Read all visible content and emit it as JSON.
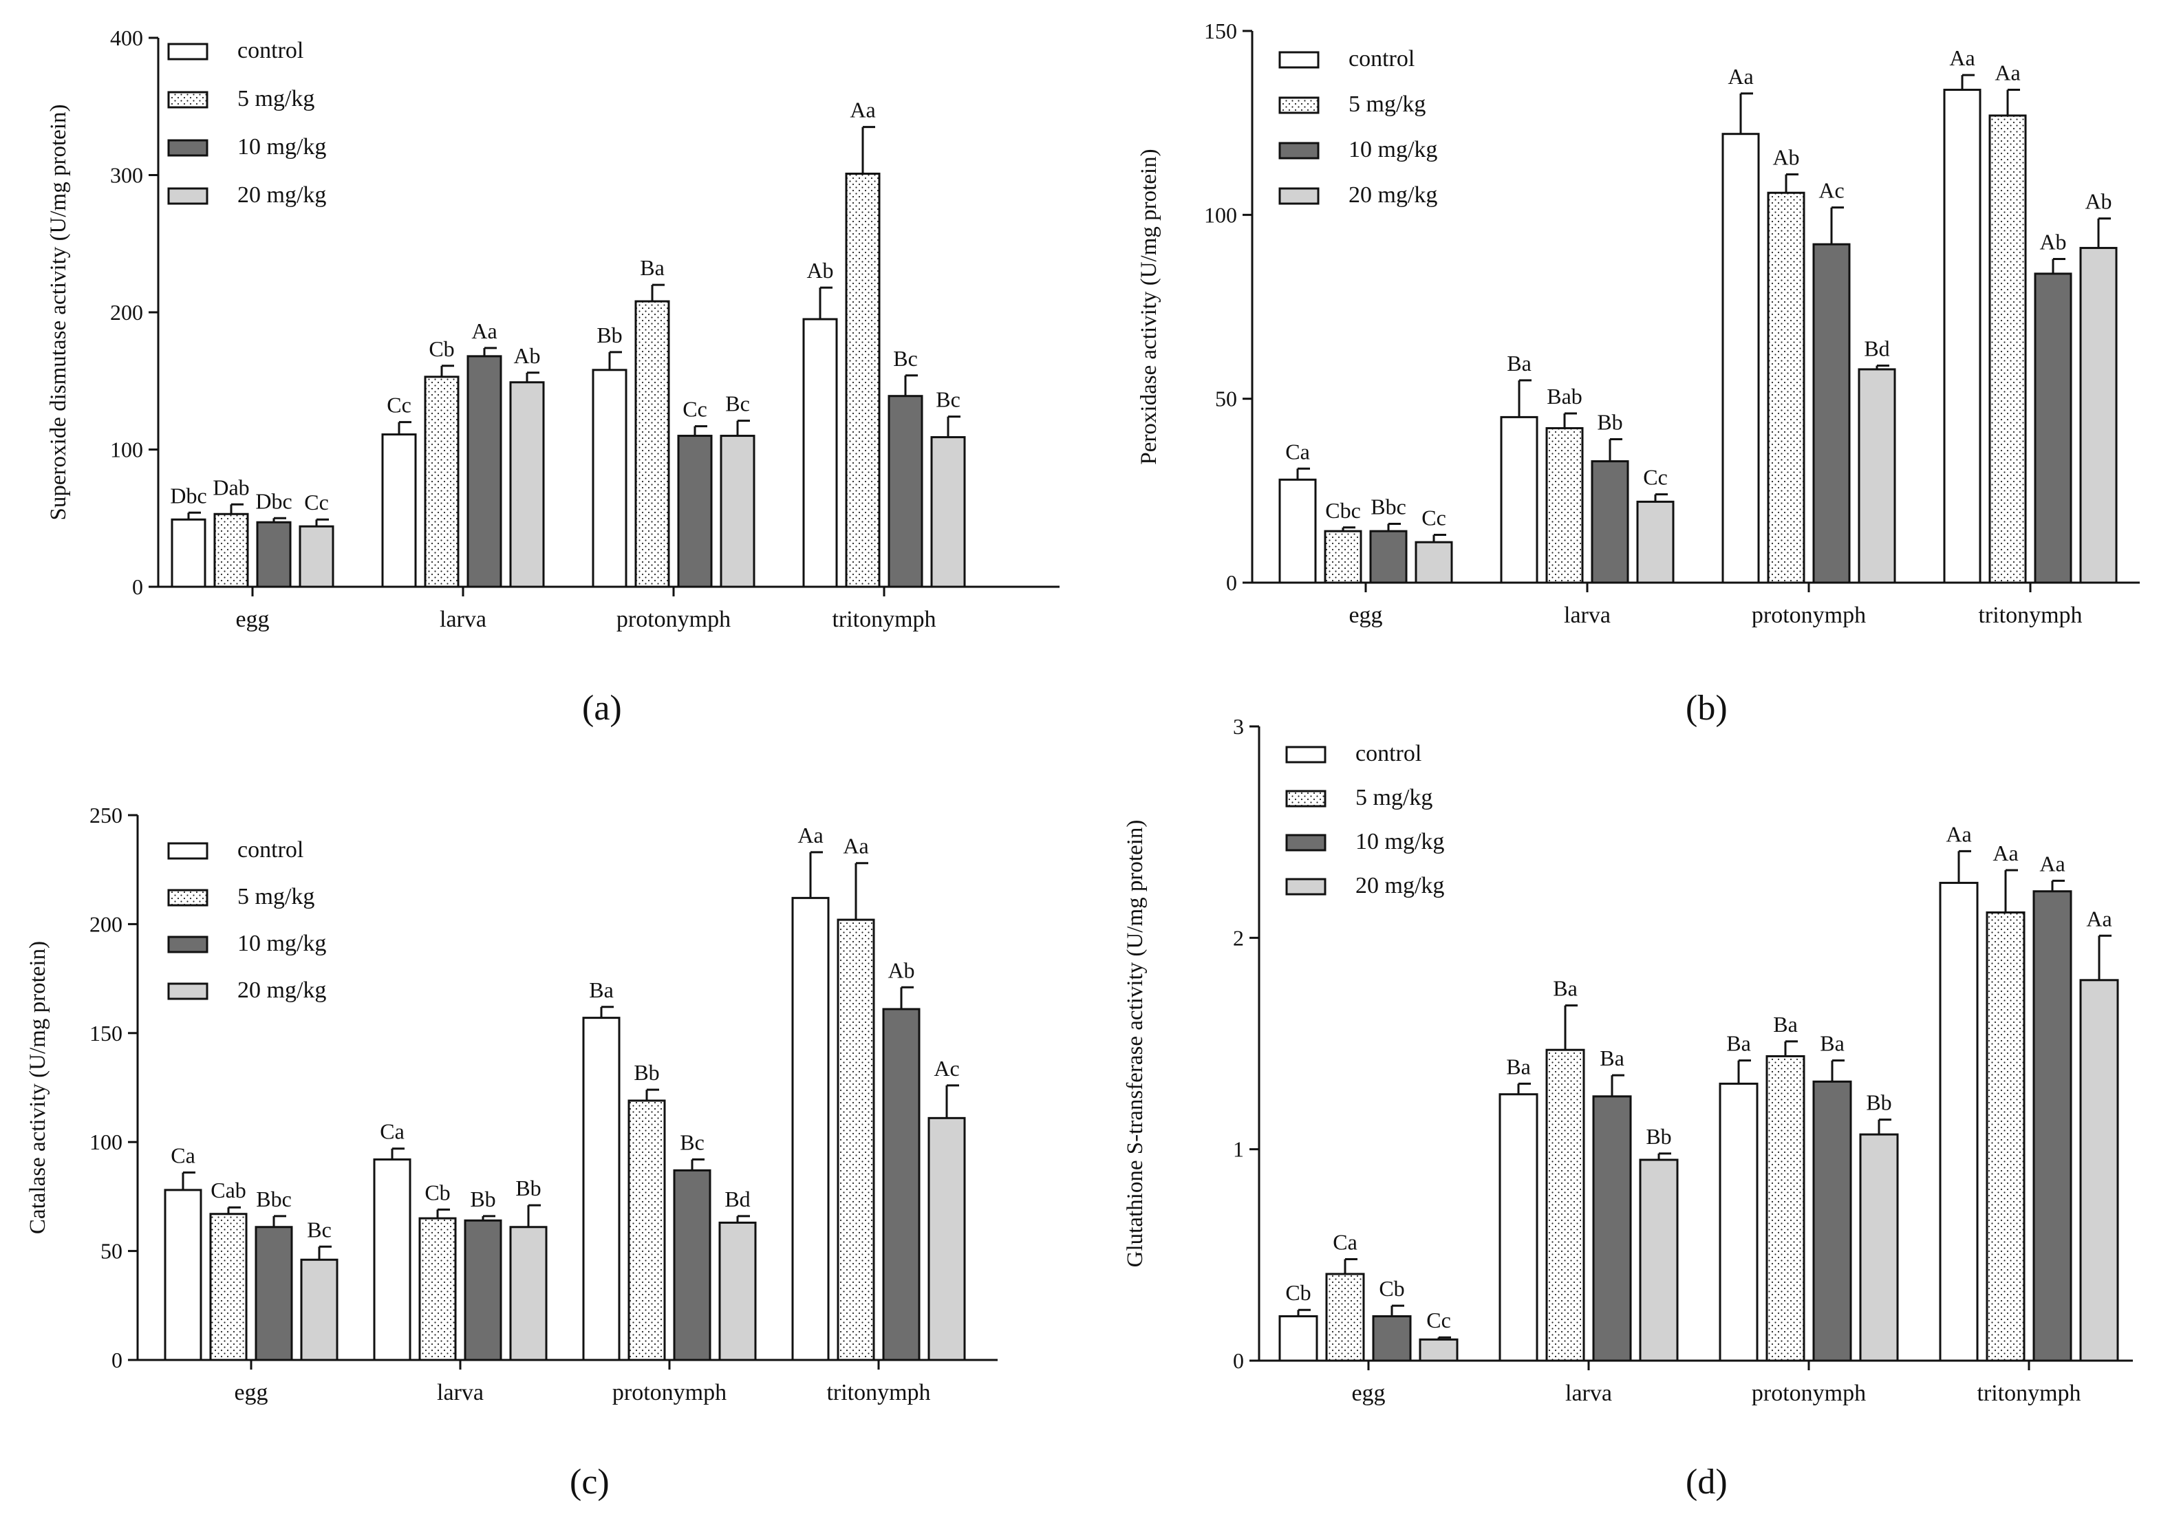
{
  "panels": [
    {
      "id": "a",
      "label": "(a)"
    },
    {
      "id": "b",
      "label": "(b)"
    },
    {
      "id": "c",
      "label": "(c)"
    },
    {
      "id": "d",
      "label": "(d)"
    }
  ],
  "legend": [
    "control",
    "5 mg/kg",
    "10 mg/kg",
    "20 mg/kg"
  ],
  "series_colors": {
    "control": "#ffffff",
    "5 mg/kg": "#ffffff",
    "10 mg/kg": "#6e6e6e",
    "20 mg/kg": "#d2d2d2"
  },
  "chart_data": [
    {
      "type": "bar",
      "ylabel": "Superoxide dismutase activity (U/mg protein)",
      "xlabel": "",
      "categories": [
        "egg",
        "larva",
        "protonymph",
        "tritonymph"
      ],
      "ylim": [
        0,
        400
      ],
      "yticks": [
        0,
        100,
        200,
        300,
        400
      ],
      "legend_position": "top-left",
      "grid": false,
      "series": [
        {
          "name": "control",
          "values": [
            49,
            111,
            158,
            195
          ],
          "errors": [
            5,
            9,
            13,
            23
          ],
          "labels": [
            "Dbc",
            "Cc",
            "Bb",
            "Ab"
          ]
        },
        {
          "name": "5 mg/kg",
          "values": [
            53,
            153,
            208,
            301
          ],
          "errors": [
            7,
            8,
            12,
            34
          ],
          "labels": [
            "Dab",
            "Cb",
            "Ba",
            "Aa"
          ]
        },
        {
          "name": "10 mg/kg",
          "values": [
            47,
            168,
            110,
            139
          ],
          "errors": [
            3,
            6,
            7,
            15
          ],
          "labels": [
            "Dbc",
            "Aa",
            "Cc",
            "Bc"
          ]
        },
        {
          "name": "20 mg/kg",
          "values": [
            44,
            149,
            110,
            109
          ],
          "errors": [
            5,
            7,
            11,
            15
          ],
          "labels": [
            "Cc",
            "Ab",
            "Bc",
            "Bc"
          ]
        }
      ]
    },
    {
      "type": "bar",
      "ylabel": "Peroxidase activity (U/mg protein)",
      "xlabel": "",
      "categories": [
        "egg",
        "larva",
        "protonymph",
        "tritonymph"
      ],
      "ylim": [
        0,
        150
      ],
      "yticks": [
        0,
        50,
        100,
        150
      ],
      "legend_position": "top-left",
      "grid": false,
      "series": [
        {
          "name": "control",
          "values": [
            28,
            45,
            122,
            134
          ],
          "errors": [
            3,
            10,
            11,
            4
          ],
          "labels": [
            "Ca",
            "Ba",
            "Aa",
            "Aa"
          ]
        },
        {
          "name": "5 mg/kg",
          "values": [
            14,
            42,
            106,
            127
          ],
          "errors": [
            1,
            4,
            5,
            7
          ],
          "labels": [
            "Cbc",
            "Bab",
            "Ab",
            "Aa"
          ]
        },
        {
          "name": "10 mg/kg",
          "values": [
            14,
            33,
            92,
            84
          ],
          "errors": [
            2,
            6,
            10,
            4
          ],
          "labels": [
            "Bbc",
            "Bb",
            "Ac",
            "Ab"
          ]
        },
        {
          "name": "20 mg/kg",
          "values": [
            11,
            22,
            58,
            91
          ],
          "errors": [
            2,
            2,
            1,
            8
          ],
          "labels": [
            "Cc",
            "Cc",
            "Bd",
            "Ab"
          ]
        }
      ]
    },
    {
      "type": "bar",
      "ylabel": "Catalase activity (U/mg protein)",
      "xlabel": "",
      "categories": [
        "egg",
        "larva",
        "protonymph",
        "tritonymph"
      ],
      "ylim": [
        0,
        250
      ],
      "yticks": [
        0,
        50,
        100,
        150,
        200,
        250
      ],
      "legend_position": "top-left",
      "grid": false,
      "series": [
        {
          "name": "control",
          "values": [
            78,
            92,
            157,
            212
          ],
          "errors": [
            8,
            5,
            5,
            21
          ],
          "labels": [
            "Ca",
            "Ca",
            "Ba",
            "Aa"
          ]
        },
        {
          "name": "5 mg/kg",
          "values": [
            67,
            65,
            119,
            202
          ],
          "errors": [
            3,
            4,
            5,
            26
          ],
          "labels": [
            "Cab",
            "Cb",
            "Bb",
            "Aa"
          ]
        },
        {
          "name": "10 mg/kg",
          "values": [
            61,
            64,
            87,
            161
          ],
          "errors": [
            5,
            2,
            5,
            10
          ],
          "labels": [
            "Bbc",
            "Bb",
            "Bc",
            "Ab"
          ]
        },
        {
          "name": "20 mg/kg",
          "values": [
            46,
            61,
            63,
            111
          ],
          "errors": [
            6,
            10,
            3,
            15
          ],
          "labels": [
            "Bc",
            "Bb",
            "Bd",
            "Ac"
          ]
        }
      ]
    },
    {
      "type": "bar",
      "ylabel": "Glutathione S-transferase activity (U/mg protein)",
      "xlabel": "",
      "categories": [
        "egg",
        "larva",
        "protonymph",
        "tritonymph"
      ],
      "ylim": [
        0,
        3
      ],
      "yticks": [
        0,
        1,
        2,
        3
      ],
      "legend_position": "top-left",
      "grid": false,
      "series": [
        {
          "name": "control",
          "values": [
            0.21,
            1.26,
            1.31,
            2.26
          ],
          "errors": [
            0.03,
            0.05,
            0.11,
            0.15
          ],
          "labels": [
            "Cb",
            "Ba",
            "Ba",
            "Aa"
          ]
        },
        {
          "name": "5 mg/kg",
          "values": [
            0.41,
            1.47,
            1.44,
            2.12
          ],
          "errors": [
            0.07,
            0.21,
            0.07,
            0.2
          ],
          "labels": [
            "Ca",
            "Ba",
            "Ba",
            "Aa"
          ]
        },
        {
          "name": "10 mg/kg",
          "values": [
            0.21,
            1.25,
            1.32,
            2.22
          ],
          "errors": [
            0.05,
            0.1,
            0.1,
            0.05
          ],
          "labels": [
            "Cb",
            "Ba",
            "Ba",
            "Aa"
          ]
        },
        {
          "name": "20 mg/kg",
          "values": [
            0.1,
            0.95,
            1.07,
            1.8
          ],
          "errors": [
            0.01,
            0.03,
            0.07,
            0.21
          ],
          "labels": [
            "Cc",
            "Bb",
            "Bb",
            "Aa"
          ]
        }
      ]
    }
  ]
}
